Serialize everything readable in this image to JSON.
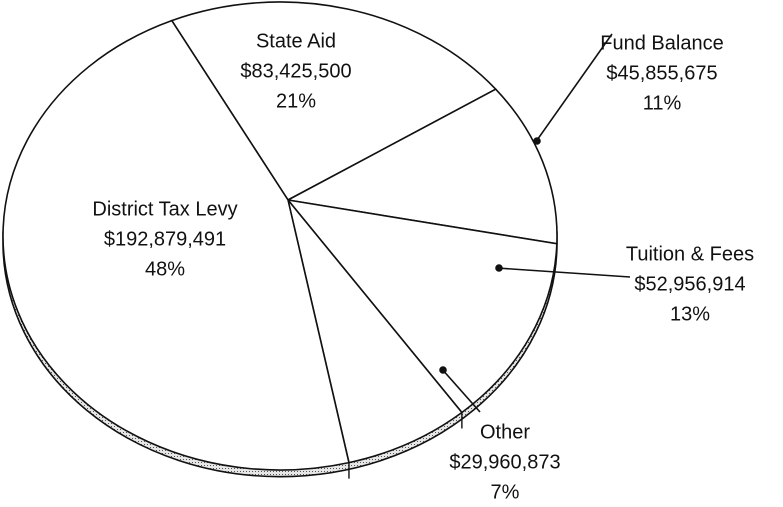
{
  "chart_data": {
    "type": "pie",
    "categories": [
      "State Aid",
      "Fund Balance",
      "Tuition & Fees",
      "Other",
      "District Tax Levy"
    ],
    "values": [
      83425500,
      45855675,
      52956914,
      29960873,
      192879491
    ],
    "value_labels": [
      "$83,425,500",
      "$45,855,675",
      "$52,956,914",
      "$29,960,873",
      "$192,879,491"
    ],
    "percentages": [
      21,
      11,
      13,
      7,
      48
    ],
    "percentage_labels": [
      "21%",
      "11%",
      "13%",
      "7%",
      "48%"
    ],
    "color": "#ffffff"
  }
}
